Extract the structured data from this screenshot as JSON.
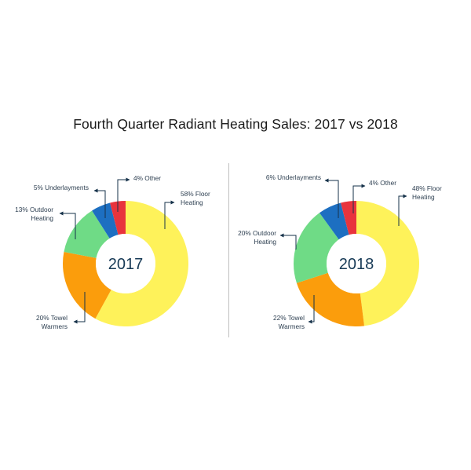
{
  "title": "Fourth Quarter Radiant Heating Sales: 2017 vs 2018",
  "chart_data": [
    {
      "type": "pie",
      "center_label": "2017",
      "slices": [
        {
          "name": "Floor Heating",
          "value": 58,
          "color": "#fef25a",
          "label_lines": [
            "58% Floor",
            "Heating"
          ]
        },
        {
          "name": "Towel Warmers",
          "value": 20,
          "color": "#fb9d0c",
          "label_lines": [
            "20% Towel",
            "Warmers"
          ]
        },
        {
          "name": "Outdoor Heating",
          "value": 13,
          "color": "#6fdb86",
          "label_lines": [
            "13% Outdoor",
            "Heating"
          ]
        },
        {
          "name": "Underlayments",
          "value": 5,
          "color": "#1d6fc1",
          "label_lines": [
            "5% Underlayments"
          ]
        },
        {
          "name": "Other",
          "value": 4,
          "color": "#e8343d",
          "label_lines": [
            "4% Other"
          ]
        }
      ]
    },
    {
      "type": "pie",
      "center_label": "2018",
      "slices": [
        {
          "name": "Floor Heating",
          "value": 48,
          "color": "#fef25a",
          "label_lines": [
            "48% Floor",
            "Heating"
          ]
        },
        {
          "name": "Towel Warmers",
          "value": 22,
          "color": "#fb9d0c",
          "label_lines": [
            "22% Towel",
            "Warmers"
          ]
        },
        {
          "name": "Outdoor Heating",
          "value": 20,
          "color": "#6fdb86",
          "label_lines": [
            "20% Outdoor",
            "Heating"
          ]
        },
        {
          "name": "Underlayments",
          "value": 6,
          "color": "#1d6fc1",
          "label_lines": [
            "6% Underlayments"
          ]
        },
        {
          "name": "Other",
          "value": 4,
          "color": "#e8343d",
          "label_lines": [
            "4% Other"
          ]
        }
      ]
    }
  ]
}
